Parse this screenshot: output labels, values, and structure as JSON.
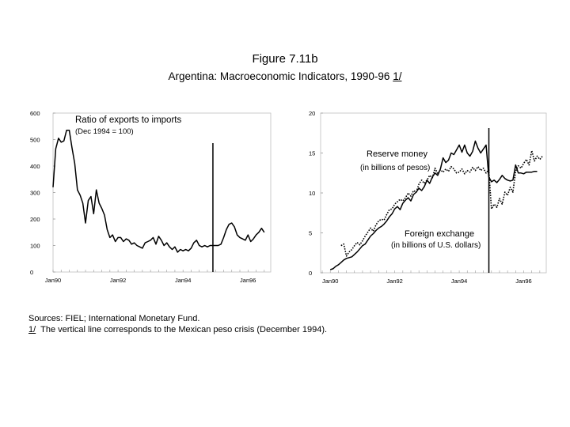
{
  "figure": {
    "number": "Figure 7.11b",
    "title": "Argentina: Macroeconomic Indicators, 1990-96",
    "note_marker": "1/"
  },
  "notes": {
    "sources": "Sources: FIEL; International Monetary Fund.",
    "footnote_marker": "1/",
    "footnote_text": "  The vertical line corresponds to the Mexican peso crisis (December 1994)."
  },
  "chart_data": [
    {
      "type": "line",
      "series": [
        {
          "name": "Ratio of exports to imports",
          "x": [
            1990.0,
            1990.083,
            1990.167,
            1990.25,
            1990.333,
            1990.417,
            1990.5,
            1990.583,
            1990.667,
            1990.75,
            1990.833,
            1990.917,
            1991.0,
            1991.083,
            1991.167,
            1991.25,
            1991.333,
            1991.417,
            1991.5,
            1991.583,
            1991.667,
            1991.75,
            1991.833,
            1991.917,
            1992.0,
            1992.083,
            1992.167,
            1992.25,
            1992.333,
            1992.417,
            1992.5,
            1992.583,
            1992.667,
            1992.75,
            1992.833,
            1992.917,
            1993.0,
            1993.083,
            1993.167,
            1993.25,
            1993.333,
            1993.417,
            1993.5,
            1993.583,
            1993.667,
            1993.75,
            1993.833,
            1993.917,
            1994.0,
            1994.083,
            1994.167,
            1994.25,
            1994.333,
            1994.417,
            1994.5,
            1994.583,
            1994.667,
            1994.75,
            1994.833,
            1994.917,
            1995.0,
            1995.083,
            1995.167,
            1995.25,
            1995.333,
            1995.417,
            1995.5,
            1995.583,
            1995.667,
            1995.75,
            1995.833,
            1995.917,
            1996.0,
            1996.083,
            1996.167,
            1996.25,
            1996.333,
            1996.417,
            1996.5
          ],
          "values": [
            320,
            465,
            505,
            490,
            495,
            535,
            535,
            470,
            410,
            310,
            290,
            260,
            185,
            270,
            285,
            220,
            310,
            260,
            240,
            215,
            160,
            130,
            140,
            115,
            130,
            130,
            115,
            125,
            120,
            105,
            110,
            100,
            95,
            90,
            110,
            115,
            120,
            130,
            105,
            135,
            120,
            100,
            110,
            95,
            85,
            95,
            75,
            85,
            80,
            85,
            80,
            90,
            110,
            120,
            100,
            95,
            100,
            95,
            100,
            100,
            100,
            100,
            105,
            130,
            160,
            180,
            185,
            170,
            140,
            130,
            125,
            120,
            140,
            115,
            125,
            140,
            150,
            165,
            150
          ]
        }
      ],
      "annotations": [
        "Ratio of exports to imports",
        "(Dec 1994 = 100)"
      ],
      "x_ticks": [
        "Jan90",
        "Jan92",
        "Jan94",
        "Jan96"
      ],
      "y_ticks": [
        "600",
        "500",
        "400",
        "300",
        "200",
        "100",
        "0"
      ],
      "ylim": [
        0,
        600
      ],
      "xlim": [
        1990.0,
        1996.7
      ],
      "vertical_line_at": 1994.92
    },
    {
      "type": "line",
      "series": [
        {
          "name": "Reserve money",
          "style": "solid",
          "x": [
            1990.0,
            1990.083,
            1990.167,
            1990.25,
            1990.333,
            1990.417,
            1990.5,
            1990.583,
            1990.667,
            1990.75,
            1990.833,
            1990.917,
            1991.0,
            1991.083,
            1991.167,
            1991.25,
            1991.333,
            1991.417,
            1991.5,
            1991.583,
            1991.667,
            1991.75,
            1991.833,
            1991.917,
            1992.0,
            1992.083,
            1992.167,
            1992.25,
            1992.333,
            1992.417,
            1992.5,
            1992.583,
            1992.667,
            1992.75,
            1992.833,
            1992.917,
            1993.0,
            1993.083,
            1993.167,
            1993.25,
            1993.333,
            1993.417,
            1993.5,
            1993.583,
            1993.667,
            1993.75,
            1993.833,
            1993.917,
            1994.0,
            1994.083,
            1994.167,
            1994.25,
            1994.333,
            1994.417,
            1994.5,
            1994.583,
            1994.667,
            1994.75,
            1994.833,
            1994.917,
            1995.0,
            1995.083,
            1995.167,
            1995.25,
            1995.333,
            1995.417,
            1995.5,
            1995.583,
            1995.667,
            1995.75,
            1995.833,
            1995.917,
            1996.0,
            1996.083,
            1996.167,
            1996.25,
            1996.333,
            1996.417
          ],
          "values": [
            0.4,
            0.5,
            0.8,
            1.0,
            1.3,
            1.6,
            1.8,
            1.9,
            2.0,
            2.3,
            2.6,
            3.0,
            3.4,
            3.6,
            4.1,
            4.6,
            4.9,
            5.3,
            5.6,
            5.8,
            6.1,
            6.5,
            7.0,
            7.4,
            8.0,
            8.3,
            7.9,
            8.7,
            9.1,
            9.4,
            9.0,
            9.8,
            10.1,
            10.6,
            10.3,
            10.8,
            11.6,
            11.2,
            12.0,
            12.5,
            12.2,
            13.0,
            14.4,
            13.8,
            14.1,
            15.0,
            14.8,
            15.4,
            16.0,
            15.1,
            16.0,
            15.0,
            14.6,
            15.2,
            16.5,
            15.6,
            15.0,
            15.5,
            16.0,
            12.0,
            11.4,
            11.6,
            11.3,
            11.7,
            12.2,
            11.8,
            11.6,
            11.5,
            11.6,
            13.5,
            12.5,
            12.5,
            12.4,
            12.6,
            12.6,
            12.6,
            12.7,
            12.7
          ]
        },
        {
          "name": "Foreign exchange",
          "style": "dotted",
          "x": [
            1990.333,
            1990.417,
            1990.5,
            1990.583,
            1990.667,
            1990.75,
            1990.833,
            1990.917,
            1991.0,
            1991.083,
            1991.167,
            1991.25,
            1991.333,
            1991.417,
            1991.5,
            1991.583,
            1991.667,
            1991.75,
            1991.833,
            1991.917,
            1992.0,
            1992.083,
            1992.167,
            1992.25,
            1992.333,
            1992.417,
            1992.5,
            1992.583,
            1992.667,
            1992.75,
            1992.833,
            1992.917,
            1993.0,
            1993.083,
            1993.167,
            1993.25,
            1993.333,
            1993.417,
            1993.5,
            1993.583,
            1993.667,
            1993.75,
            1993.833,
            1993.917,
            1994.0,
            1994.083,
            1994.167,
            1994.25,
            1994.333,
            1994.417,
            1994.5,
            1994.583,
            1994.667,
            1994.75,
            1994.833,
            1994.917,
            1995.0,
            1995.083,
            1995.167,
            1995.25,
            1995.333,
            1995.417,
            1995.5,
            1995.583,
            1995.667,
            1995.75,
            1995.833,
            1995.917,
            1996.0,
            1996.083,
            1996.167,
            1996.25,
            1996.333,
            1996.417,
            1996.5,
            1996.583
          ],
          "values": [
            3.4,
            3.6,
            2.1,
            2.6,
            2.9,
            3.4,
            3.8,
            3.5,
            4.0,
            4.6,
            5.1,
            5.6,
            5.2,
            6.0,
            6.5,
            6.7,
            6.6,
            7.3,
            7.9,
            8.0,
            8.6,
            8.9,
            9.2,
            9.0,
            9.4,
            10.0,
            9.6,
            10.3,
            10.1,
            11.1,
            11.6,
            11.2,
            11.6,
            12.2,
            11.9,
            13.1,
            12.4,
            12.9,
            12.6,
            13.0,
            12.7,
            13.3,
            13.0,
            12.5,
            12.6,
            13.0,
            12.4,
            12.8,
            12.6,
            13.2,
            12.8,
            13.3,
            12.8,
            13.1,
            12.5,
            12.9,
            8.0,
            8.6,
            8.2,
            9.3,
            8.6,
            10.1,
            9.7,
            10.7,
            10.1,
            12.7,
            13.4,
            13.1,
            13.7,
            14.2,
            13.5,
            15.3,
            14.0,
            14.6,
            14.2,
            14.6
          ]
        }
      ],
      "annotations": [
        "Reserve money",
        "(in billions of pesos)",
        "Foreign exchange",
        "(in billions of U.S. dollars)"
      ],
      "x_ticks": [
        "Jan90",
        "Jan92",
        "Jan94",
        "Jan96"
      ],
      "y_ticks": [
        "20",
        "15",
        "10",
        "5",
        "0"
      ],
      "ylim": [
        0,
        20
      ],
      "xlim": [
        1989.7,
        1996.7
      ],
      "vertical_line_at": 1994.92
    }
  ]
}
